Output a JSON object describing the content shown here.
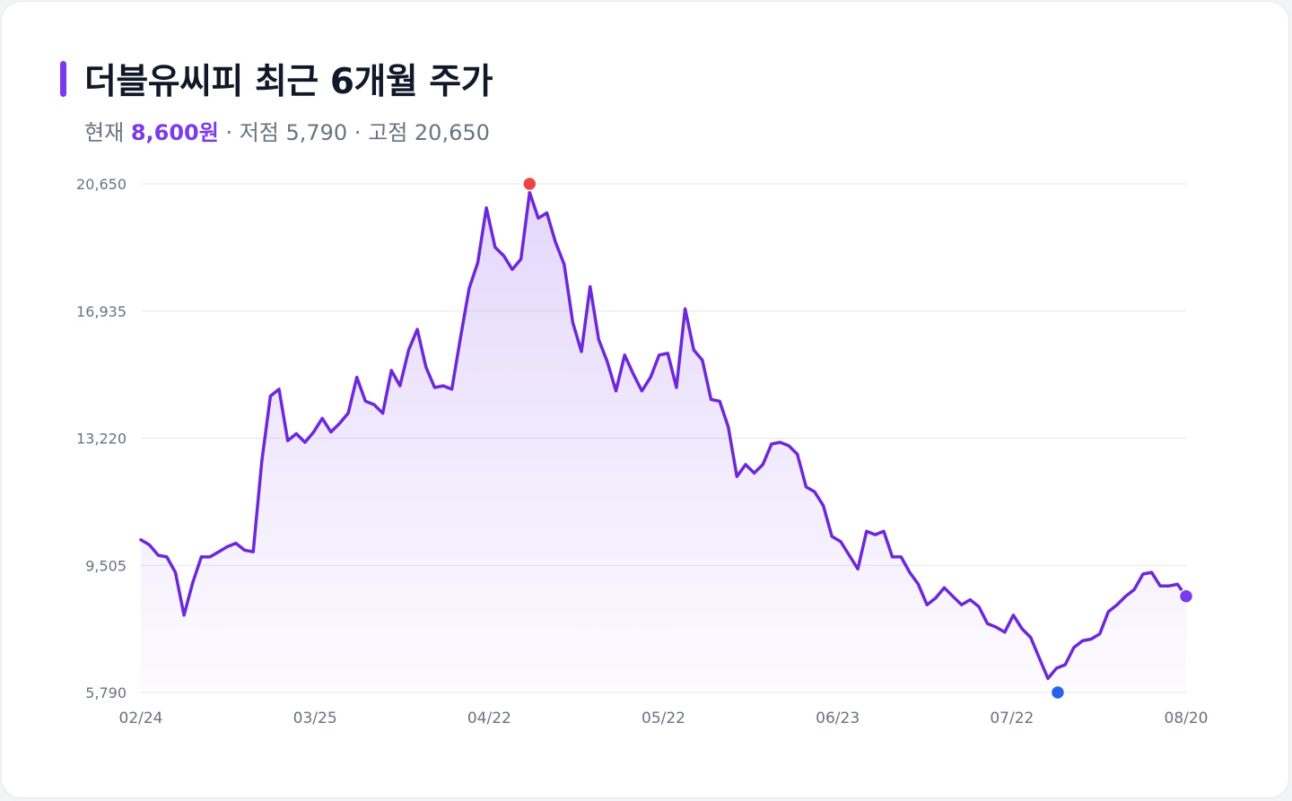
{
  "title": "더블유씨피 최근 6개월 주가",
  "subtitle": {
    "current_prefix": "현재",
    "current_value": "8,600원",
    "low_text": "· 저점 5,790",
    "high_text": "· 고점 20,650"
  },
  "colors": {
    "accent": "#7c3aed",
    "line": "#6d28d9",
    "high_marker": "#ef4444",
    "low_marker": "#2563eb",
    "grid": "#e5e7eb"
  },
  "chart_data": {
    "type": "area",
    "title": "더블유씨피 최근 6개월 주가",
    "xlabel": "",
    "ylabel": "",
    "ylim": [
      5790,
      20650
    ],
    "y_ticks": [
      "20,650",
      "16,935",
      "13,220",
      "9,505",
      "5,790"
    ],
    "x_ticks": [
      "02/24",
      "03/25",
      "04/22",
      "05/22",
      "06/23",
      "07/22",
      "08/20"
    ],
    "grid": true,
    "high": 20650,
    "low": 5790,
    "current": 8600,
    "values": [
      10250,
      10100,
      9800,
      9750,
      9300,
      8050,
      9000,
      9750,
      9750,
      9900,
      10050,
      10150,
      9950,
      9900,
      12550,
      14450,
      14650,
      13150,
      13350,
      13100,
      13400,
      13800,
      13400,
      13650,
      13950,
      15000,
      14300,
      14200,
      13950,
      15200,
      14750,
      15800,
      16400,
      15300,
      14700,
      14750,
      14650,
      16150,
      17600,
      18350,
      19950,
      18800,
      18550,
      18150,
      18450,
      20400,
      19650,
      19800,
      18950,
      18300,
      16600,
      15750,
      17650,
      16100,
      15450,
      14600,
      15650,
      15100,
      14600,
      15000,
      15650,
      15700,
      14700,
      17000,
      15800,
      15500,
      14350,
      14300,
      13550,
      12100,
      12450,
      12200,
      12450,
      13050,
      13100,
      13000,
      12750,
      11800,
      11650,
      11250,
      10350,
      10200,
      9800,
      9400,
      10500,
      10400,
      10500,
      9750,
      9750,
      9300,
      8950,
      8350,
      8550,
      8850,
      8600,
      8350,
      8500,
      8300,
      7800,
      7700,
      7550,
      8050,
      7650,
      7400,
      6800,
      6200,
      6500,
      6600,
      7100,
      7300,
      7350,
      7500,
      8150,
      8350,
      8600,
      8800,
      9250,
      9300,
      8900,
      8900,
      8950,
      8600
    ]
  }
}
